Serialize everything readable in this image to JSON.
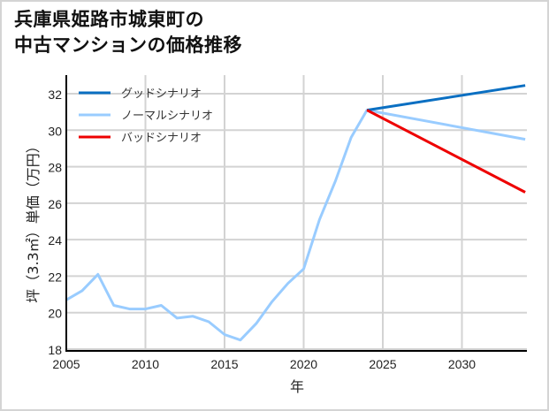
{
  "title": {
    "line1": "兵庫県姫路市城東町の",
    "line2": "中古マンションの価格推移"
  },
  "chart_data": {
    "type": "line",
    "title": "兵庫県姫路市城東町の中古マンションの価格推移",
    "xlabel": "年",
    "ylabel": "坪（3.3㎡）単価（万円）",
    "xlim": [
      2005,
      2034
    ],
    "ylim": [
      18,
      33
    ],
    "xticks": [
      2005,
      2010,
      2015,
      2020,
      2025,
      2030
    ],
    "yticks": [
      18,
      20,
      22,
      24,
      26,
      28,
      30,
      32
    ],
    "grid": true,
    "legend_position": "upper left",
    "series": [
      {
        "name": "グッドシナリオ",
        "color": "#0a6fc2",
        "x": [
          2024,
          2034
        ],
        "values": [
          31.1,
          32.45
        ]
      },
      {
        "name": "ノーマルシナリオ",
        "color": "#99ccff",
        "x": [
          2005,
          2006,
          2007,
          2008,
          2009,
          2010,
          2011,
          2012,
          2013,
          2014,
          2015,
          2016,
          2017,
          2018,
          2019,
          2020,
          2021,
          2022,
          2023,
          2024,
          2034
        ],
        "values": [
          20.7,
          21.2,
          22.1,
          20.4,
          20.2,
          20.2,
          20.4,
          19.7,
          19.8,
          19.5,
          18.8,
          18.5,
          19.4,
          20.6,
          21.6,
          22.4,
          25.1,
          27.2,
          29.6,
          31.1,
          29.5
        ]
      },
      {
        "name": "バッドシナリオ",
        "color": "#ee0000",
        "x": [
          2024,
          2034
        ],
        "values": [
          31.1,
          26.6
        ]
      }
    ]
  }
}
